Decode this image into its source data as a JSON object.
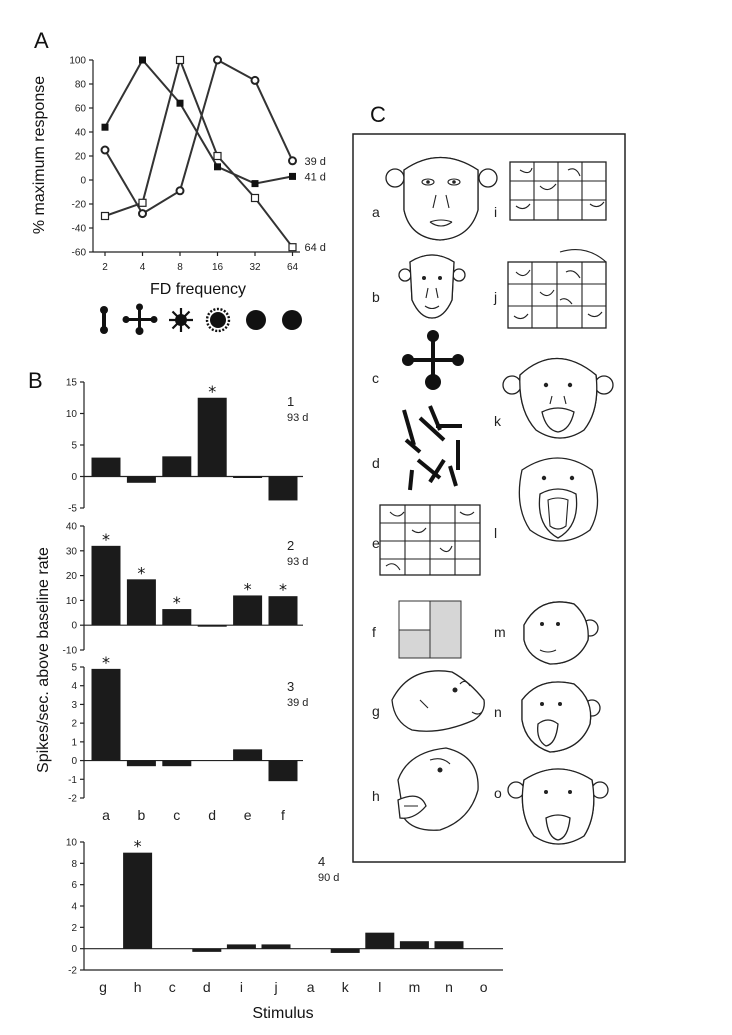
{
  "panel_labels": {
    "a": "A",
    "b": "B",
    "c": "C"
  },
  "chart_data": [
    {
      "id": "A",
      "type": "line",
      "xlabel": "FD  frequency",
      "ylabel": "% maximum response",
      "categories": [
        "2",
        "4",
        "8",
        "16",
        "32",
        "64"
      ],
      "ylim": [
        -60,
        100
      ],
      "yticks": [
        "-60",
        "-40",
        "-20",
        "0",
        "20",
        "40",
        "60",
        "80",
        "100"
      ],
      "series": [
        {
          "name": "39 d",
          "marker": "circle-open",
          "values": [
            25,
            -28,
            -9,
            100,
            83,
            16
          ]
        },
        {
          "name": "41 d",
          "marker": "square-filled",
          "values": [
            44,
            100,
            64,
            11,
            -3,
            3
          ]
        },
        {
          "name": "64 d",
          "marker": "square-open",
          "values": [
            -30,
            -19,
            100,
            20,
            -15,
            -56
          ]
        }
      ]
    },
    {
      "id": "B1",
      "type": "bar",
      "label": "1",
      "sublabel": "93 d",
      "categories": [
        "a",
        "b",
        "c",
        "d",
        "e",
        "f"
      ],
      "values": [
        3,
        -1,
        3.2,
        12.5,
        -0.1,
        -3.8
      ],
      "significant": [
        false,
        false,
        false,
        true,
        false,
        false
      ],
      "ylim": [
        -5,
        15
      ],
      "yticks": [
        "-5",
        "0",
        "5",
        "10",
        "15"
      ]
    },
    {
      "id": "B2",
      "type": "bar",
      "label": "2",
      "sublabel": "93 d",
      "categories": [
        "a",
        "b",
        "c",
        "d",
        "e",
        "f"
      ],
      "values": [
        32,
        18.5,
        6.5,
        -0.3,
        12,
        11.7
      ],
      "significant": [
        true,
        true,
        true,
        false,
        true,
        true
      ],
      "ylim": [
        -10,
        40
      ],
      "yticks": [
        "-10",
        "0",
        "10",
        "20",
        "30",
        "40"
      ]
    },
    {
      "id": "B3",
      "type": "bar",
      "label": "3",
      "sublabel": "39 d",
      "categories": [
        "a",
        "b",
        "c",
        "d",
        "e",
        "f"
      ],
      "values": [
        4.9,
        -0.3,
        -0.3,
        0,
        0.6,
        -1.1
      ],
      "significant": [
        true,
        false,
        false,
        false,
        false,
        false
      ],
      "ylim": [
        -2,
        5
      ],
      "yticks": [
        "-2",
        "-1",
        "0",
        "1",
        "2",
        "3",
        "4",
        "5"
      ]
    },
    {
      "id": "B4",
      "type": "bar",
      "label": "4",
      "sublabel": "90 d",
      "categories": [
        "g",
        "h",
        "c",
        "d",
        "i",
        "j",
        "a",
        "k",
        "l",
        "m",
        "n",
        "o"
      ],
      "values": [
        0,
        9,
        0,
        -0.3,
        0.4,
        0.4,
        0,
        -0.4,
        1.5,
        0.7,
        0.7,
        0
      ],
      "significant": [
        false,
        true,
        false,
        false,
        false,
        false,
        false,
        false,
        false,
        false,
        false,
        false
      ],
      "ylim": [
        -2,
        10
      ],
      "yticks": [
        "-2",
        "0",
        "2",
        "4",
        "6",
        "8",
        "10"
      ]
    }
  ],
  "b_ylabel": "Spikes/sec. above baseline rate",
  "b_xlabel": "Stimulus",
  "significance_mark": "*",
  "panel_c": {
    "left_items": [
      "a",
      "b",
      "c",
      "d",
      "e",
      "f",
      "g",
      "h"
    ],
    "right_items": [
      "i",
      "j",
      "k",
      "l",
      "m",
      "n",
      "o"
    ]
  }
}
